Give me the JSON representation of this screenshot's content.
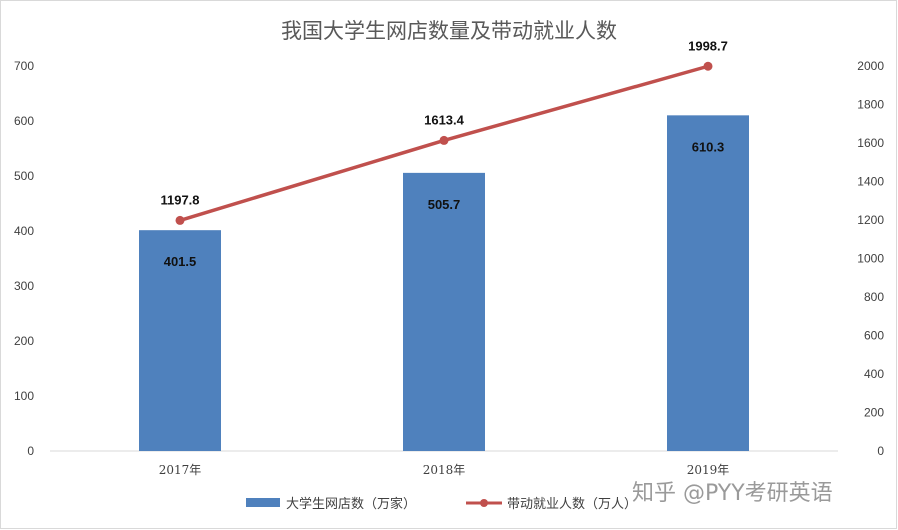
{
  "chart_data": {
    "type": "bar",
    "title": "我国大学生网店数量及带动就业人数",
    "categories": [
      "2017年",
      "2018年",
      "2019年"
    ],
    "series": [
      {
        "name": "大学生网店数（万家）",
        "type": "bar",
        "axis": "left",
        "values": [
          401.5,
          505.7,
          610.3
        ],
        "labels": [
          "401.5",
          "505.7",
          "610.3"
        ],
        "color": "#4F81BD"
      },
      {
        "name": "带动就业人数（万人）",
        "type": "line",
        "axis": "right",
        "values": [
          1197.8,
          1613.4,
          1998.7
        ],
        "labels": [
          "1197.8",
          "1613.4",
          "1998.7"
        ],
        "color": "#C0504D"
      }
    ],
    "y_left": {
      "range": [
        0,
        700
      ],
      "ticks": [
        "0",
        "100",
        "200",
        "300",
        "400",
        "500",
        "600",
        "700"
      ]
    },
    "y_right": {
      "range": [
        0,
        2000
      ],
      "ticks": [
        "0",
        "200",
        "400",
        "600",
        "800",
        "1000",
        "1200",
        "1400",
        "1600",
        "1800",
        "2000"
      ]
    },
    "grid": false,
    "legend_position": "bottom"
  },
  "watermark": "知乎 @PYY考研英语"
}
